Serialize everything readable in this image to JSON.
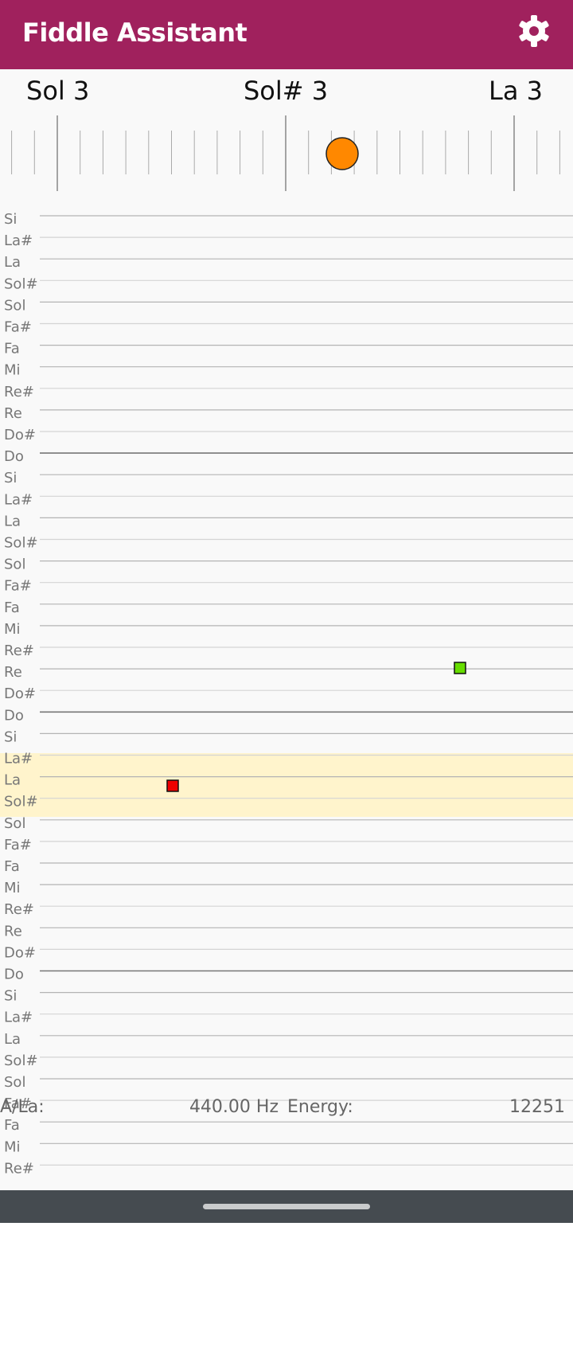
{
  "header": {
    "title": "Fiddle Assistant"
  },
  "tuner": {
    "notes": [
      "Sol 3",
      "Sol# 3",
      "La 3"
    ]
  },
  "staff": {
    "labels": [
      "Si",
      "La#",
      "La",
      "Sol#",
      "Sol",
      "Fa#",
      "Fa",
      "Mi",
      "Re#",
      "Re",
      "Do#",
      "Do",
      "Si",
      "La#",
      "La",
      "Sol#",
      "Sol",
      "Fa#",
      "Fa",
      "Mi",
      "Re#",
      "Re",
      "Do#",
      "Do",
      "Si",
      "La#",
      "La",
      "Sol#",
      "Sol",
      "Fa#",
      "Fa",
      "Mi",
      "Re#",
      "Re",
      "Do#",
      "Do",
      "Si",
      "La#",
      "La",
      "Sol#",
      "Sol",
      "Fa#",
      "Fa",
      "Mi",
      "Re#"
    ]
  },
  "footer": {
    "reference_label": "A/La:",
    "reference_value": "440.00 Hz",
    "energy_label": "Energy:",
    "energy_value": "12251"
  }
}
